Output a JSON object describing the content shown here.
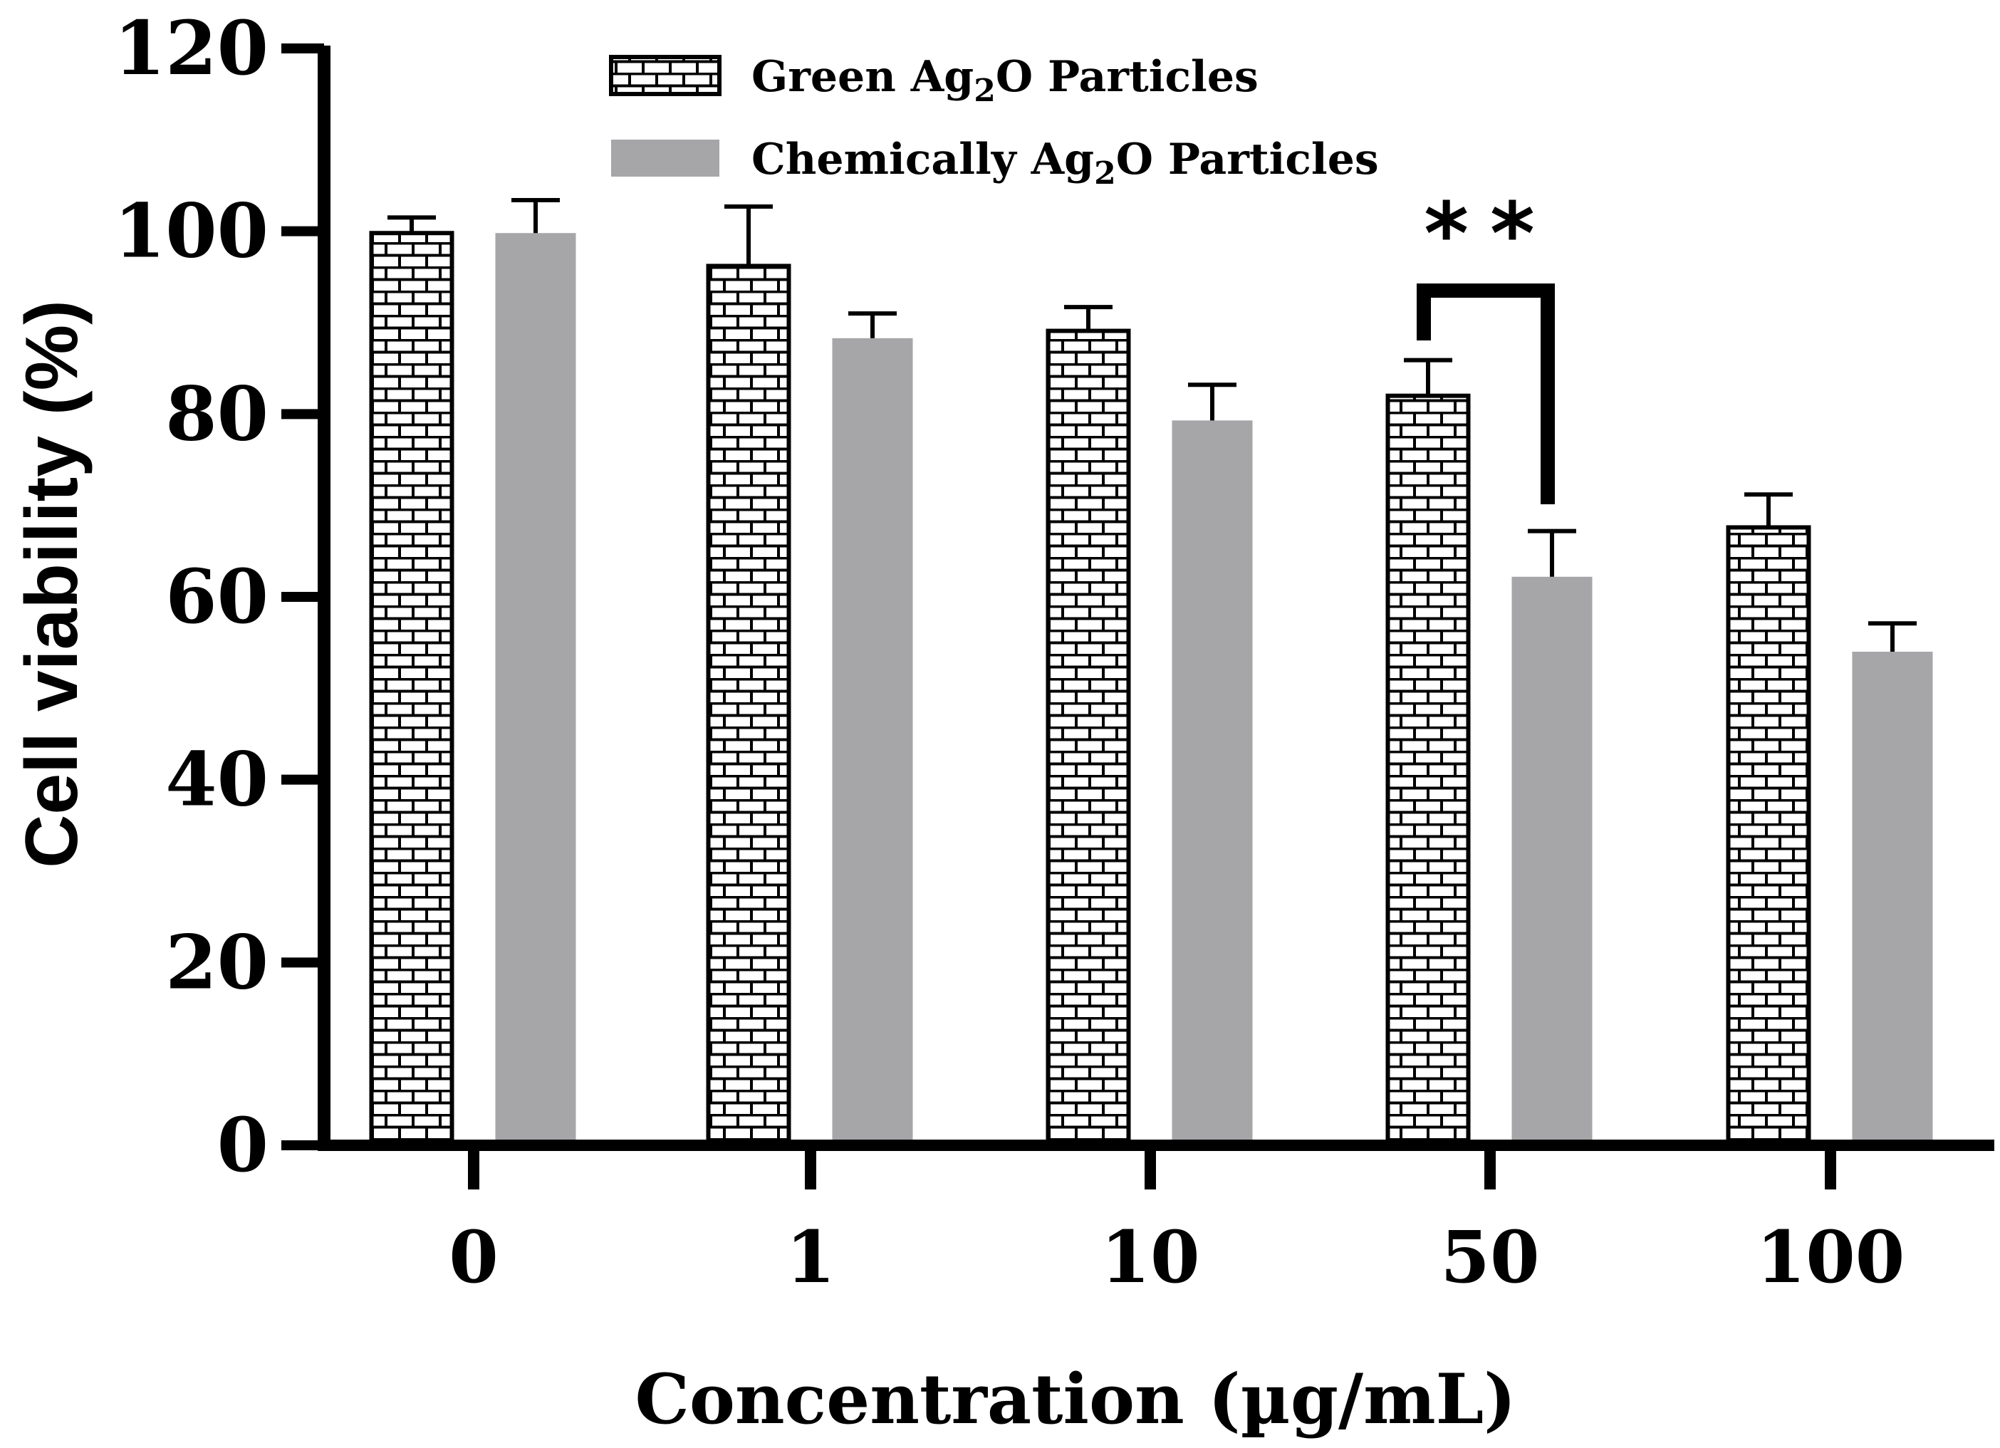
{
  "chart_data": {
    "type": "bar",
    "title": "",
    "xlabel": "Concentration (µg/mL)",
    "ylabel": "Cell viability (%)",
    "ylim": [
      0,
      120
    ],
    "yticks": [
      0,
      20,
      40,
      60,
      80,
      100,
      120
    ],
    "categories": [
      "0",
      "1",
      "10",
      "50",
      "100"
    ],
    "series": [
      {
        "name": "Green Ag2O Particles",
        "legend_main": "Green Ag",
        "legend_sub": "2",
        "legend_rest": "O Particles",
        "pattern": "brick",
        "color": "#000000",
        "values": [
          99.8,
          96.2,
          89.1,
          82.0,
          67.6
        ],
        "errors": [
          1.7,
          6.5,
          2.6,
          3.9,
          3.6
        ]
      },
      {
        "name": "Chemically Ag2O Particles",
        "legend_main": "Chemically Ag",
        "legend_sub": "2",
        "legend_rest": "O Particles",
        "pattern": "solid",
        "color": "#a6a6a8",
        "values": [
          99.8,
          88.3,
          79.3,
          62.2,
          54.0
        ],
        "errors": [
          3.6,
          2.7,
          3.9,
          5.0,
          3.1
        ]
      }
    ],
    "significance": {
      "category": "50",
      "label": "**"
    }
  }
}
